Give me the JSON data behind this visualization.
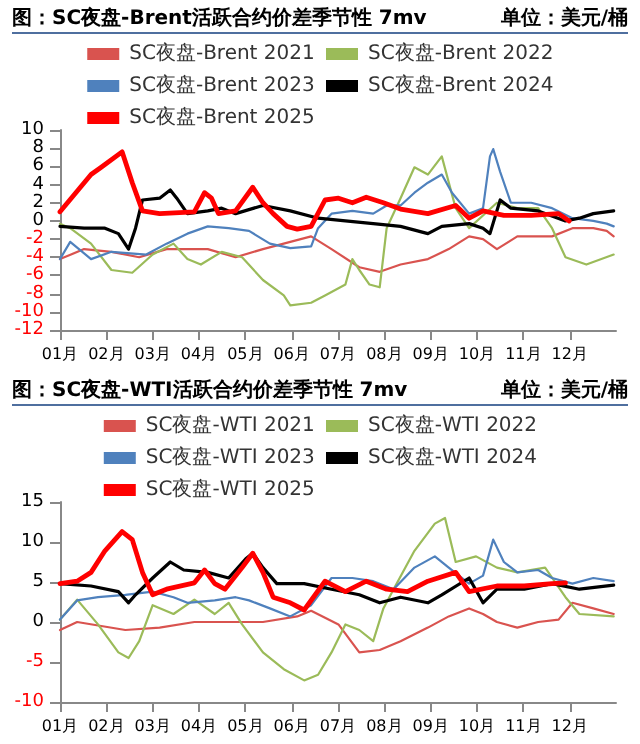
{
  "chart_data": [
    {
      "type": "line",
      "title": "图：SC夜盘-Brent活跃合约价差季节性 7mv",
      "annotations": [
        "单位：美元/桶"
      ],
      "legend": "top",
      "marker": "none",
      "line_style": "solid",
      "xlim": [
        1,
        13
      ],
      "xticks": [
        {
          "value": 1,
          "label": "01月"
        },
        {
          "value": 2,
          "label": "02月"
        },
        {
          "value": 3,
          "label": "03月"
        },
        {
          "value": 4,
          "label": "04月"
        },
        {
          "value": 5,
          "label": "05月"
        },
        {
          "value": 6,
          "label": "06月"
        },
        {
          "value": 7,
          "label": "07月"
        },
        {
          "value": 8,
          "label": "08月"
        },
        {
          "value": 9,
          "label": "09月"
        },
        {
          "value": 10,
          "label": "10月"
        },
        {
          "value": 11,
          "label": "11月"
        },
        {
          "value": 12,
          "label": "12月"
        }
      ],
      "ylim": [
        -12,
        10
      ],
      "yticks": [
        -12,
        -10,
        -8,
        -6,
        -4,
        -2,
        0,
        2,
        4,
        6,
        8,
        10
      ],
      "series": [
        {
          "name": "SC夜盘-Brent 2021",
          "color": "#d9534f",
          "x": [
            1.0,
            1.52,
            2.11,
            2.71,
            3.3,
            4.19,
            4.79,
            5.38,
            5.97,
            6.42,
            6.86,
            7.46,
            7.9,
            8.35,
            8.94,
            9.39,
            9.83,
            10.13,
            10.43,
            10.87,
            11.62,
            12.06,
            12.51,
            12.8,
            12.95
          ],
          "values": [
            -4.2,
            -3.1,
            -3.4,
            -4.0,
            -3.1,
            -3.1,
            -4.0,
            -3.1,
            -2.3,
            -1.7,
            -3.1,
            -5.1,
            -5.6,
            -4.8,
            -4.2,
            -3.1,
            -1.7,
            -2.0,
            -3.1,
            -1.7,
            -1.7,
            -0.8,
            -0.8,
            -1.1,
            -1.7
          ]
        },
        {
          "name": "SC夜盘-Brent 2022",
          "color": "#9bbb59",
          "x": [
            1.0,
            1.22,
            1.67,
            2.11,
            2.56,
            3.0,
            3.45,
            3.75,
            4.04,
            4.49,
            4.93,
            5.38,
            5.83,
            5.97,
            6.42,
            6.72,
            7.16,
            7.31,
            7.46,
            7.68,
            7.9,
            8.05,
            8.35,
            8.65,
            8.94,
            9.24,
            9.54,
            9.83,
            10.43,
            10.87,
            11.32,
            11.62,
            11.91,
            12.36,
            12.95
          ],
          "values": [
            -0.3,
            -0.8,
            -2.5,
            -5.4,
            -5.7,
            -3.7,
            -2.5,
            -4.2,
            -4.8,
            -3.4,
            -4.0,
            -6.5,
            -8.2,
            -9.3,
            -9.0,
            -8.2,
            -7.0,
            -4.2,
            -5.4,
            -7.0,
            -7.3,
            -0.8,
            2.5,
            5.9,
            5.1,
            7.1,
            1.4,
            -0.8,
            2.0,
            1.4,
            1.4,
            -0.8,
            -4.0,
            -4.8,
            -3.7
          ]
        },
        {
          "name": "SC夜盘-Brent 2023",
          "color": "#4f81bd",
          "x": [
            1.0,
            1.22,
            1.67,
            2.11,
            2.86,
            3.3,
            3.75,
            4.19,
            4.64,
            5.08,
            5.53,
            5.97,
            6.42,
            6.57,
            6.86,
            7.31,
            7.76,
            8.05,
            8.35,
            8.65,
            8.94,
            9.24,
            9.46,
            9.83,
            10.13,
            10.28,
            10.35,
            10.5,
            10.73,
            11.17,
            11.62,
            12.06,
            12.51,
            12.8,
            12.95
          ],
          "values": [
            -4.2,
            -2.3,
            -4.2,
            -3.4,
            -3.7,
            -2.5,
            -1.4,
            -0.6,
            -0.8,
            -1.1,
            -2.5,
            -3.0,
            -2.8,
            -0.8,
            0.8,
            1.1,
            0.8,
            1.7,
            1.7,
            3.1,
            4.2,
            5.1,
            3.1,
            0.8,
            1.4,
            7.1,
            7.9,
            5.4,
            2.0,
            2.0,
            1.4,
            0.3,
            0,
            -0.3,
            -0.6
          ]
        },
        {
          "name": "SC夜盘-Brent 2024",
          "color": "#000000",
          "x": [
            1.0,
            1.52,
            1.97,
            2.26,
            2.48,
            2.63,
            2.78,
            3.15,
            3.38,
            3.52,
            3.75,
            4.19,
            4.49,
            4.79,
            5.38,
            5.97,
            6.57,
            7.16,
            7.76,
            8.35,
            8.94,
            9.24,
            9.83,
            10.13,
            10.28,
            10.5,
            10.73,
            11.32,
            11.91,
            12.21,
            12.51,
            12.95
          ],
          "values": [
            -0.6,
            -0.8,
            -0.8,
            -1.4,
            -3.1,
            -0.8,
            2.3,
            2.5,
            3.4,
            2.5,
            0.8,
            1.1,
            1.4,
            0.8,
            1.7,
            1.1,
            0.3,
            0,
            -0.3,
            -0.6,
            -1.4,
            -0.6,
            -0.3,
            -0.8,
            -1.4,
            2.3,
            1.4,
            1.1,
            0,
            0.3,
            0.8,
            1.1
          ]
        },
        {
          "name": "SC夜盘-Brent 2025",
          "color": "#ff0000",
          "x": [
            1.0,
            1.67,
            1.89,
            2.34,
            2.56,
            2.78,
            3.15,
            3.9,
            4.12,
            4.27,
            4.42,
            4.79,
            5.16,
            5.38,
            5.6,
            5.9,
            6.12,
            6.42,
            6.72,
            7.01,
            7.31,
            7.61,
            7.98,
            8.35,
            8.94,
            9.54,
            9.83,
            10.13,
            10.58,
            11.17,
            11.76,
            11.99
          ],
          "values": [
            1.0,
            5.1,
            5.9,
            7.6,
            4.2,
            1.1,
            0.8,
            1.0,
            3.1,
            2.5,
            0.8,
            1.1,
            3.7,
            2.0,
            0.8,
            -0.6,
            -0.9,
            -0.6,
            2.3,
            2.5,
            2.0,
            2.6,
            2.0,
            1.3,
            0.8,
            1.7,
            0.3,
            1.1,
            0.6,
            0.6,
            0.8,
            0
          ]
        }
      ]
    },
    {
      "type": "line",
      "title": "图：SC夜盘-WTI活跃合约价差季节性 7mv",
      "annotations": [
        "单位：美元/桶"
      ],
      "legend": "top",
      "marker": "none",
      "line_style": "solid",
      "xlim": [
        1,
        13
      ],
      "xticks": [
        {
          "value": 1,
          "label": "01月"
        },
        {
          "value": 2,
          "label": "02月"
        },
        {
          "value": 3,
          "label": "03月"
        },
        {
          "value": 4,
          "label": "04月"
        },
        {
          "value": 5,
          "label": "05月"
        },
        {
          "value": 6,
          "label": "06月"
        },
        {
          "value": 7,
          "label": "07月"
        },
        {
          "value": 8,
          "label": "08月"
        },
        {
          "value": 9,
          "label": "09月"
        },
        {
          "value": 10,
          "label": "10月"
        },
        {
          "value": 11,
          "label": "11月"
        },
        {
          "value": 12,
          "label": "12月"
        }
      ],
      "ylim": [
        -10,
        15
      ],
      "yticks": [
        -10,
        -5,
        0,
        5,
        10,
        15
      ],
      "series": [
        {
          "name": "SC夜盘-WTI 2021",
          "color": "#d9534f",
          "x": [
            1.0,
            1.37,
            2.41,
            3.15,
            3.9,
            4.64,
            5.38,
            6.12,
            6.42,
            7.01,
            7.46,
            7.9,
            8.35,
            8.94,
            9.39,
            9.83,
            10.13,
            10.43,
            10.87,
            11.32,
            11.76,
            12.06,
            12.51,
            12.95
          ],
          "values": [
            -1.0,
            0,
            -1.0,
            -0.7,
            0,
            0,
            0,
            0.7,
            1.4,
            -0.3,
            -3.8,
            -3.5,
            -2.4,
            -0.7,
            0.7,
            1.7,
            1.0,
            0,
            -0.7,
            0,
            0.3,
            2.4,
            1.7,
            1.0
          ]
        },
        {
          "name": "SC夜盘-WTI 2022",
          "color": "#9bbb59",
          "x": [
            1.0,
            1.37,
            1.82,
            2.26,
            2.48,
            2.71,
            3.0,
            3.45,
            3.9,
            4.34,
            4.64,
            4.93,
            5.38,
            5.83,
            6.27,
            6.57,
            6.86,
            7.16,
            7.46,
            7.76,
            7.98,
            8.2,
            8.65,
            9.09,
            9.31,
            9.54,
            9.98,
            10.43,
            10.87,
            11.47,
            11.91,
            12.21,
            12.95
          ],
          "values": [
            0.3,
            2.8,
            -0.3,
            -3.8,
            -4.5,
            -2.4,
            2.1,
            1.0,
            2.8,
            1.0,
            2.4,
            -0.3,
            -3.8,
            -5.9,
            -7.3,
            -6.6,
            -3.8,
            -0.3,
            -1.0,
            -2.4,
            1.7,
            4.1,
            8.9,
            12.3,
            13.0,
            7.5,
            8.2,
            6.8,
            6.2,
            6.8,
            3.1,
            1.0,
            0.7
          ]
        },
        {
          "name": "SC夜盘-WTI 2023",
          "color": "#4f81bd",
          "x": [
            1.0,
            1.37,
            1.82,
            2.41,
            3.0,
            3.45,
            3.75,
            4.34,
            4.79,
            5.08,
            5.53,
            5.97,
            6.42,
            6.86,
            7.31,
            7.76,
            8.2,
            8.65,
            9.09,
            9.39,
            9.83,
            10.13,
            10.35,
            10.58,
            10.87,
            11.32,
            11.62,
            12.06,
            12.51,
            12.95
          ],
          "values": [
            0.3,
            2.7,
            3.1,
            3.4,
            3.8,
            3.1,
            2.4,
            2.7,
            3.1,
            2.7,
            1.7,
            0.7,
            2.1,
            5.5,
            5.5,
            5.1,
            4.1,
            6.8,
            8.2,
            6.8,
            4.8,
            5.8,
            10.3,
            7.5,
            6.2,
            6.5,
            5.5,
            4.8,
            5.5,
            5.1
          ]
        },
        {
          "name": "SC夜盘-WTI 2024",
          "color": "#000000",
          "x": [
            1.0,
            1.67,
            2.26,
            2.48,
            2.63,
            3.0,
            3.38,
            3.67,
            4.19,
            4.64,
            5.01,
            5.16,
            5.38,
            5.68,
            6.27,
            6.86,
            7.46,
            7.9,
            8.35,
            8.94,
            9.24,
            9.83,
            10.13,
            10.43,
            11.02,
            11.62,
            12.21,
            12.95
          ],
          "values": [
            4.8,
            4.5,
            3.8,
            2.4,
            3.4,
            5.5,
            7.5,
            6.5,
            6.2,
            5.5,
            7.9,
            8.6,
            6.8,
            4.8,
            4.8,
            4.1,
            3.4,
            2.4,
            3.1,
            2.4,
            3.4,
            5.5,
            2.4,
            4.1,
            4.1,
            4.8,
            4.1,
            4.6
          ]
        },
        {
          "name": "SC夜盘-WTI 2025",
          "color": "#ff0000",
          "x": [
            1.0,
            1.37,
            1.67,
            1.97,
            2.34,
            2.56,
            2.78,
            3.0,
            3.3,
            3.9,
            4.12,
            4.34,
            4.56,
            4.93,
            5.16,
            5.38,
            5.6,
            5.97,
            6.27,
            6.72,
            7.16,
            7.61,
            8.05,
            8.5,
            8.94,
            9.54,
            9.83,
            10.43,
            11.02,
            11.62,
            11.91
          ],
          "values": [
            4.8,
            5.1,
            6.2,
            8.9,
            11.3,
            10.3,
            6.2,
            3.4,
            4.1,
            4.9,
            6.5,
            4.8,
            4.1,
            6.8,
            8.6,
            6.2,
            3.1,
            2.4,
            1.5,
            5.1,
            3.8,
            5.1,
            4.1,
            3.8,
            5.1,
            6.2,
            3.8,
            4.5,
            4.5,
            4.8,
            4.9
          ]
        }
      ]
    }
  ]
}
